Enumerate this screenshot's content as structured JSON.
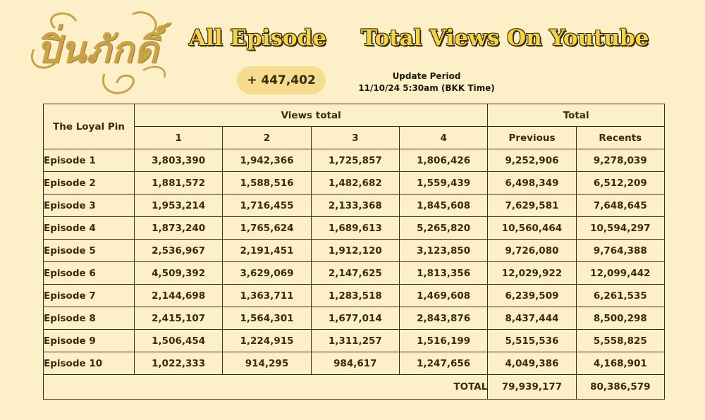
{
  "brand": {
    "logo_text": "ปิ่นภักดิ์"
  },
  "heading": {
    "left": "All Episode",
    "right": "Total Views On Youtube"
  },
  "increase": "+ 447,402",
  "update": {
    "label": "Update Period",
    "value": "11/10/24 5:30am (BKK Time)"
  },
  "table": {
    "corner": "The Loyal Pin",
    "views_total": "Views total",
    "total_label": "Total",
    "columns": [
      "1",
      "2",
      "3",
      "4"
    ],
    "previous_label": "Previous",
    "recents_label": "Recents",
    "rows": [
      {
        "episode": "Episode 1",
        "v": [
          "3,803,390",
          "1,942,366",
          "1,725,857",
          "1,806,426"
        ],
        "previous": "9,252,906",
        "recents": "9,278,039"
      },
      {
        "episode": "Episode 2",
        "v": [
          "1,881,572",
          "1,588,516",
          "1,482,682",
          "1,559,439"
        ],
        "previous": "6,498,349",
        "recents": "6,512,209"
      },
      {
        "episode": "Episode 3",
        "v": [
          "1,953,214",
          "1,716,455",
          "2,133,368",
          "1,845,608"
        ],
        "previous": "7,629,581",
        "recents": "7,648,645"
      },
      {
        "episode": "Episode 4",
        "v": [
          "1,873,240",
          "1,765,624",
          "1,689,613",
          "5,265,820"
        ],
        "previous": "10,560,464",
        "recents": "10,594,297"
      },
      {
        "episode": "Episode 5",
        "v": [
          "2,536,967",
          "2,191,451",
          "1,912,120",
          "3,123,850"
        ],
        "previous": "9,726,080",
        "recents": "9,764,388"
      },
      {
        "episode": "Episode 6",
        "v": [
          "4,509,392",
          "3,629,069",
          "2,147,625",
          "1,813,356"
        ],
        "previous": "12,029,922",
        "recents": "12,099,442"
      },
      {
        "episode": "Episode 7",
        "v": [
          "2,144,698",
          "1,363,711",
          "1,283,518",
          "1,469,608"
        ],
        "previous": "6,239,509",
        "recents": "6,261,535"
      },
      {
        "episode": "Episode 8",
        "v": [
          "2,415,107",
          "1,564,301",
          "1,677,014",
          "2,843,876"
        ],
        "previous": "8,437,444",
        "recents": "8,500,298"
      },
      {
        "episode": "Episode 9",
        "v": [
          "1,506,454",
          "1,224,915",
          "1,311,257",
          "1,516,199"
        ],
        "previous": "5,515,536",
        "recents": "5,558,825"
      },
      {
        "episode": "Episode 10",
        "v": [
          "1,022,333",
          "914,295",
          "984,617",
          "1,247,656"
        ],
        "previous": "4,049,386",
        "recents": "4,168,901"
      }
    ],
    "sum_label": "TOTAL",
    "sum_previous": "79,939,177",
    "sum_recents": "80,386,579"
  },
  "colors": {
    "background": "#fdf0c8",
    "gold": "#e2a92d",
    "headline": "#f4d24a",
    "pill": "#f6dc8e"
  }
}
